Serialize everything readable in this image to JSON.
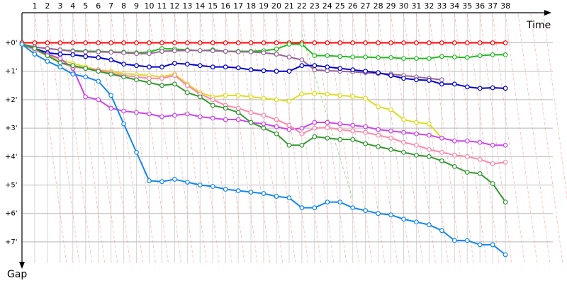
{
  "chart_data": {
    "type": "line",
    "title": "",
    "xlabel": "Time",
    "ylabel": "Gap",
    "x_ticks": [
      1,
      2,
      3,
      4,
      5,
      6,
      7,
      8,
      9,
      10,
      11,
      12,
      13,
      14,
      15,
      16,
      17,
      18,
      19,
      20,
      21,
      22,
      23,
      24,
      25,
      26,
      27,
      28,
      29,
      30,
      31,
      32,
      33,
      34,
      35,
      36,
      37,
      38
    ],
    "y_tick_labels": [
      "+0'",
      "+1'",
      "+2'",
      "+3'",
      "+4'",
      "+5'",
      "+6'",
      "+7'"
    ],
    "y_ticks_minutes": [
      0,
      1,
      2,
      3,
      4,
      5,
      6,
      7
    ],
    "xlim": [
      0,
      42
    ],
    "ylim_minutes": [
      0,
      7.5
    ],
    "grid": true,
    "legend": "none",
    "series": [
      {
        "color": "#ff0000",
        "values": [
          0,
          0,
          0,
          0,
          0,
          0,
          0,
          0,
          0,
          0,
          0,
          0,
          0,
          0,
          0,
          0,
          0,
          0,
          0,
          0,
          0,
          0,
          0,
          0,
          0,
          0,
          0,
          0,
          0,
          0,
          0,
          0,
          0,
          0,
          0,
          0,
          0,
          0,
          0
        ]
      },
      {
        "color": "#22bb22",
        "values": [
          0.05,
          0.15,
          0.2,
          0.25,
          0.28,
          0.3,
          0.3,
          0.32,
          0.33,
          0.35,
          0.32,
          0.2,
          0.22,
          0.25,
          0.28,
          0.25,
          0.3,
          0.3,
          0.3,
          0.28,
          0.22,
          0.05,
          0.05,
          0.45,
          0.45,
          0.48,
          0.5,
          0.5,
          0.52,
          0.52,
          0.55,
          0.55,
          0.55,
          0.48,
          0.5,
          0.52,
          0.45,
          0.42,
          0.42
        ]
      },
      {
        "color": "#996699",
        "values": [
          0.05,
          0.15,
          0.2,
          0.25,
          0.3,
          0.32,
          0.32,
          0.33,
          0.35,
          0.38,
          0.38,
          0.3,
          0.28,
          0.27,
          0.27,
          0.28,
          0.3,
          0.32,
          0.32,
          0.35,
          0.4,
          0.5,
          0.6,
          0.95,
          0.98,
          1.0,
          1.02,
          1.05,
          1.08,
          1.1,
          1.15,
          1.2,
          1.25,
          1.3
        ]
      },
      {
        "color": "#0000cc",
        "values": [
          0.05,
          0.2,
          0.35,
          0.4,
          0.42,
          0.48,
          0.52,
          0.6,
          0.75,
          0.8,
          0.85,
          0.85,
          0.72,
          0.75,
          0.8,
          0.85,
          0.85,
          0.88,
          0.95,
          0.98,
          1.0,
          1.0,
          0.8,
          0.8,
          0.85,
          0.9,
          0.95,
          1.0,
          1.05,
          1.15,
          1.25,
          1.3,
          1.32,
          1.45,
          1.45,
          1.55,
          1.6,
          1.58,
          1.6
        ]
      },
      {
        "color": "#dddd22",
        "values": [
          0.05,
          0.25,
          0.45,
          0.6,
          0.72,
          0.85,
          0.95,
          1.0,
          1.08,
          1.12,
          1.15,
          1.2,
          1.1,
          1.45,
          1.75,
          1.9,
          1.85,
          1.85,
          1.9,
          1.95,
          2.0,
          2.05,
          1.8,
          1.78,
          1.8,
          1.85,
          1.88,
          1.95,
          2.25,
          2.35,
          2.7,
          2.8,
          2.85,
          3.35
        ]
      },
      {
        "color": "#cc44ee",
        "values": [
          0.05,
          0.25,
          0.4,
          0.55,
          0.9,
          1.9,
          2.0,
          2.3,
          2.4,
          2.45,
          2.5,
          2.6,
          2.55,
          2.5,
          2.6,
          2.65,
          2.7,
          2.7,
          2.8,
          2.85,
          2.95,
          3.05,
          3.0,
          2.8,
          2.8,
          2.85,
          2.9,
          2.95,
          3.05,
          3.1,
          3.15,
          3.2,
          3.25,
          3.35,
          3.45,
          3.45,
          3.5,
          3.6,
          3.6
        ]
      },
      {
        "color": "#ff88aa",
        "values": [
          0.05,
          0.25,
          0.45,
          0.7,
          0.85,
          0.9,
          0.95,
          1.05,
          1.15,
          1.2,
          1.25,
          1.25,
          1.15,
          1.5,
          1.8,
          2.0,
          2.2,
          2.3,
          2.45,
          2.55,
          2.7,
          2.9,
          3.2,
          3.0,
          2.98,
          3.05,
          3.1,
          3.15,
          3.25,
          3.35,
          3.5,
          3.6,
          3.75,
          3.85,
          3.95,
          4.0,
          4.1,
          4.25,
          4.2
        ]
      },
      {
        "color": "#339933",
        "values": [
          0.05,
          0.2,
          0.45,
          0.7,
          0.8,
          0.9,
          1.0,
          1.1,
          1.2,
          1.3,
          1.4,
          1.5,
          1.45,
          1.75,
          1.9,
          2.2,
          2.3,
          2.45,
          2.8,
          3.0,
          3.2,
          3.6,
          3.6,
          3.3,
          3.35,
          3.4,
          3.4,
          3.55,
          3.65,
          3.75,
          3.85,
          3.95,
          4.0,
          4.15,
          4.35,
          4.55,
          4.6,
          4.95,
          5.6
        ]
      },
      {
        "color": "#1188ee",
        "values": [
          0.05,
          0.4,
          0.65,
          0.85,
          1.1,
          1.2,
          1.35,
          1.85,
          2.85,
          3.85,
          4.85,
          4.88,
          4.8,
          4.9,
          5.0,
          5.05,
          5.15,
          5.2,
          5.25,
          5.3,
          5.4,
          5.45,
          5.8,
          5.8,
          5.6,
          5.6,
          5.8,
          5.9,
          6.0,
          6.05,
          6.2,
          6.3,
          6.4,
          6.6,
          6.95,
          6.95,
          7.1,
          7.1,
          7.45
        ]
      }
    ]
  }
}
